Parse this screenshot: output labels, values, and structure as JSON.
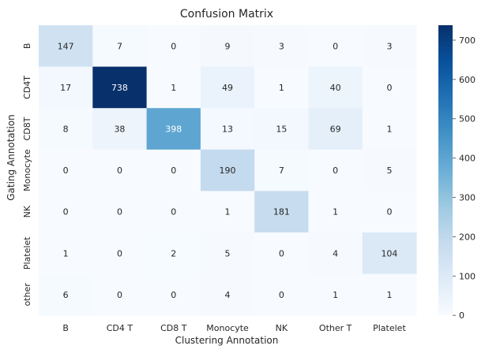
{
  "chart_data": {
    "type": "heatmap",
    "title": "Confusion Matrix",
    "xlabel": "Clustering Annotation",
    "ylabel": "Gating Annotation",
    "x_categories": [
      "B",
      "CD4 T",
      "CD8 T",
      "Monocyte",
      "NK",
      "Other T",
      "Platelet"
    ],
    "y_categories": [
      "B",
      "CD4T",
      "CD8T",
      "Monocyte",
      "NK",
      "Platelet",
      "other"
    ],
    "values": [
      [
        147,
        7,
        0,
        9,
        3,
        0,
        3
      ],
      [
        17,
        738,
        1,
        49,
        1,
        40,
        0
      ],
      [
        8,
        38,
        398,
        13,
        15,
        69,
        1
      ],
      [
        0,
        0,
        0,
        190,
        7,
        0,
        5
      ],
      [
        0,
        0,
        0,
        1,
        181,
        1,
        0
      ],
      [
        1,
        0,
        2,
        5,
        0,
        4,
        104
      ],
      [
        6,
        0,
        0,
        4,
        0,
        1,
        1
      ]
    ],
    "colorscale": "Blues",
    "color_range": [
      0,
      738
    ],
    "colorbar_ticks": [
      0,
      100,
      200,
      300,
      400,
      500,
      600,
      700
    ],
    "annotate_cells": true
  }
}
